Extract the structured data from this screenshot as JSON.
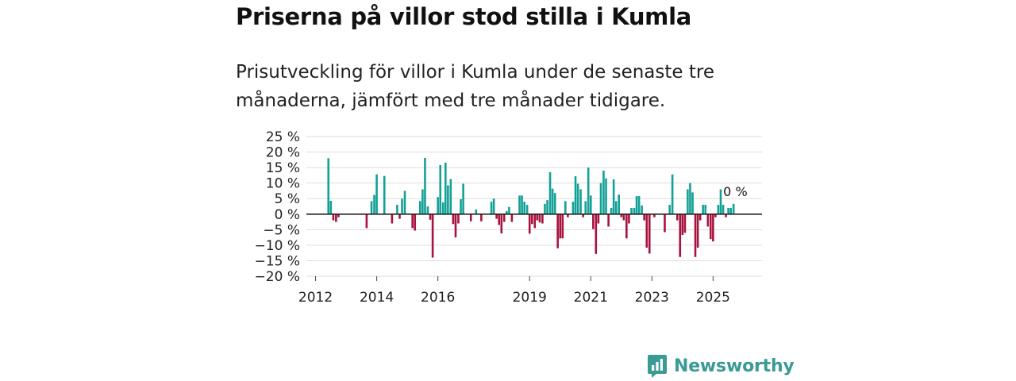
{
  "header": {
    "title": "Priserna på villor stod stilla i Kumla",
    "subtitle": "Prisutveckling för villor i Kumla under de senaste tre månaderna, jämfört med tre månader tidigare."
  },
  "brand": {
    "name": "Newsworthy",
    "icon": "newsworthy-logo-icon",
    "color": "#3a9a94"
  },
  "colors": {
    "positive": "#13a096",
    "negative": "#a8123f",
    "grid": "#dddddd",
    "zero_line": "#222222"
  },
  "chart_data": {
    "type": "bar",
    "title": "Priserna på villor stod stilla i Kumla",
    "xlabel": "",
    "ylabel": "",
    "ylim": [
      -20,
      25
    ],
    "y_ticks": [
      25,
      20,
      15,
      10,
      5,
      0,
      -5,
      -10,
      -15,
      -20
    ],
    "y_tick_labels": [
      "25 %",
      "20 %",
      "15 %",
      "10 %",
      "5 %",
      "0 %",
      "−5 %",
      "−10 %",
      "−15 %",
      "−20 %"
    ],
    "x_range": [
      2011.7,
      2026.6
    ],
    "x_ticks": [
      2012,
      2014,
      2016,
      2019,
      2021,
      2023,
      2025
    ],
    "x_tick_labels": [
      "2012",
      "2014",
      "2016",
      "2019",
      "2021",
      "2023",
      "2025"
    ],
    "last_value_label": "0 %",
    "series": [
      {
        "name": "Prisutveckling",
        "points": [
          {
            "t": 2012.42,
            "v": 18
          },
          {
            "t": 2012.5,
            "v": 4.3
          },
          {
            "t": 2012.58,
            "v": -2
          },
          {
            "t": 2012.67,
            "v": -2.5
          },
          {
            "t": 2012.75,
            "v": -1
          },
          {
            "t": 2013.67,
            "v": -4.5
          },
          {
            "t": 2013.83,
            "v": 4.2
          },
          {
            "t": 2013.92,
            "v": 6.2
          },
          {
            "t": 2014.0,
            "v": 12.8
          },
          {
            "t": 2014.25,
            "v": 12.3
          },
          {
            "t": 2014.5,
            "v": -3
          },
          {
            "t": 2014.67,
            "v": 3
          },
          {
            "t": 2014.75,
            "v": -1.5
          },
          {
            "t": 2014.83,
            "v": 5
          },
          {
            "t": 2014.92,
            "v": 7.5
          },
          {
            "t": 2015.17,
            "v": -4.5
          },
          {
            "t": 2015.25,
            "v": -5.3
          },
          {
            "t": 2015.42,
            "v": 4.2
          },
          {
            "t": 2015.5,
            "v": 8
          },
          {
            "t": 2015.58,
            "v": 18.1
          },
          {
            "t": 2015.67,
            "v": 2.5
          },
          {
            "t": 2015.75,
            "v": -1.8
          },
          {
            "t": 2015.83,
            "v": -14
          },
          {
            "t": 2016.0,
            "v": 5.5
          },
          {
            "t": 2016.08,
            "v": 15.8
          },
          {
            "t": 2016.17,
            "v": 3.8
          },
          {
            "t": 2016.25,
            "v": 16.6
          },
          {
            "t": 2016.33,
            "v": 9.3
          },
          {
            "t": 2016.42,
            "v": 11.3
          },
          {
            "t": 2016.5,
            "v": -3.2
          },
          {
            "t": 2016.58,
            "v": -7.5
          },
          {
            "t": 2016.67,
            "v": -3
          },
          {
            "t": 2016.75,
            "v": 4.8
          },
          {
            "t": 2016.83,
            "v": 9.8
          },
          {
            "t": 2017.08,
            "v": -2.3
          },
          {
            "t": 2017.25,
            "v": 1.5
          },
          {
            "t": 2017.42,
            "v": -2.3
          },
          {
            "t": 2017.75,
            "v": 4
          },
          {
            "t": 2017.83,
            "v": 5
          },
          {
            "t": 2017.92,
            "v": -1.5
          },
          {
            "t": 2018.0,
            "v": -3.5
          },
          {
            "t": 2018.08,
            "v": -6.2
          },
          {
            "t": 2018.17,
            "v": -2.5
          },
          {
            "t": 2018.25,
            "v": 1
          },
          {
            "t": 2018.33,
            "v": 2.3
          },
          {
            "t": 2018.42,
            "v": -2.5
          },
          {
            "t": 2018.67,
            "v": 6
          },
          {
            "t": 2018.75,
            "v": 6
          },
          {
            "t": 2018.83,
            "v": 4
          },
          {
            "t": 2018.92,
            "v": 3
          },
          {
            "t": 2019.0,
            "v": -6.3
          },
          {
            "t": 2019.08,
            "v": -3.2
          },
          {
            "t": 2019.17,
            "v": -4.5
          },
          {
            "t": 2019.25,
            "v": -2
          },
          {
            "t": 2019.33,
            "v": -2.7
          },
          {
            "t": 2019.42,
            "v": -3
          },
          {
            "t": 2019.5,
            "v": 3.3
          },
          {
            "t": 2019.58,
            "v": 4.5
          },
          {
            "t": 2019.67,
            "v": 13.5
          },
          {
            "t": 2019.75,
            "v": 8.2
          },
          {
            "t": 2019.83,
            "v": 6.8
          },
          {
            "t": 2019.92,
            "v": -11
          },
          {
            "t": 2020.0,
            "v": -7.8
          },
          {
            "t": 2020.08,
            "v": -7.8
          },
          {
            "t": 2020.17,
            "v": 4.2
          },
          {
            "t": 2020.25,
            "v": -1
          },
          {
            "t": 2020.42,
            "v": 4
          },
          {
            "t": 2020.5,
            "v": 12.2
          },
          {
            "t": 2020.58,
            "v": 9.8
          },
          {
            "t": 2020.67,
            "v": 8
          },
          {
            "t": 2020.75,
            "v": -1
          },
          {
            "t": 2020.83,
            "v": 4.2
          },
          {
            "t": 2020.92,
            "v": 15
          },
          {
            "t": 2021.0,
            "v": 6
          },
          {
            "t": 2021.08,
            "v": -4.8
          },
          {
            "t": 2021.17,
            "v": -12.8
          },
          {
            "t": 2021.25,
            "v": -3
          },
          {
            "t": 2021.33,
            "v": 10
          },
          {
            "t": 2021.42,
            "v": 14
          },
          {
            "t": 2021.5,
            "v": 11.5
          },
          {
            "t": 2021.58,
            "v": -4
          },
          {
            "t": 2021.67,
            "v": 2
          },
          {
            "t": 2021.75,
            "v": 11.2
          },
          {
            "t": 2021.83,
            "v": 4.2
          },
          {
            "t": 2021.92,
            "v": 6.3
          },
          {
            "t": 2022.0,
            "v": -1
          },
          {
            "t": 2022.08,
            "v": -2
          },
          {
            "t": 2022.17,
            "v": -7.8
          },
          {
            "t": 2022.25,
            "v": -3
          },
          {
            "t": 2022.33,
            "v": 2
          },
          {
            "t": 2022.42,
            "v": 2
          },
          {
            "t": 2022.5,
            "v": 5.8
          },
          {
            "t": 2022.58,
            "v": 5.8
          },
          {
            "t": 2022.67,
            "v": 2.8
          },
          {
            "t": 2022.75,
            "v": -2
          },
          {
            "t": 2022.83,
            "v": -10.8
          },
          {
            "t": 2022.92,
            "v": -12.7
          },
          {
            "t": 2023.08,
            "v": -1
          },
          {
            "t": 2023.42,
            "v": -5.8
          },
          {
            "t": 2023.58,
            "v": 3
          },
          {
            "t": 2023.67,
            "v": 12.8
          },
          {
            "t": 2023.83,
            "v": -2
          },
          {
            "t": 2023.92,
            "v": -13.8
          },
          {
            "t": 2024.0,
            "v": -6.7
          },
          {
            "t": 2024.08,
            "v": -6
          },
          {
            "t": 2024.17,
            "v": 8
          },
          {
            "t": 2024.25,
            "v": 10
          },
          {
            "t": 2024.33,
            "v": 7
          },
          {
            "t": 2024.42,
            "v": -13.8
          },
          {
            "t": 2024.5,
            "v": -10.8
          },
          {
            "t": 2024.58,
            "v": -2
          },
          {
            "t": 2024.67,
            "v": 3
          },
          {
            "t": 2024.75,
            "v": 3
          },
          {
            "t": 2024.83,
            "v": -4
          },
          {
            "t": 2024.92,
            "v": -8
          },
          {
            "t": 2025.0,
            "v": -8.8
          },
          {
            "t": 2025.08,
            "v": -1
          },
          {
            "t": 2025.17,
            "v": 3
          },
          {
            "t": 2025.25,
            "v": 8
          },
          {
            "t": 2025.33,
            "v": 3
          },
          {
            "t": 2025.42,
            "v": -1
          },
          {
            "t": 2025.5,
            "v": 2
          },
          {
            "t": 2025.58,
            "v": 2
          },
          {
            "t": 2025.67,
            "v": 3.3
          }
        ]
      }
    ]
  }
}
